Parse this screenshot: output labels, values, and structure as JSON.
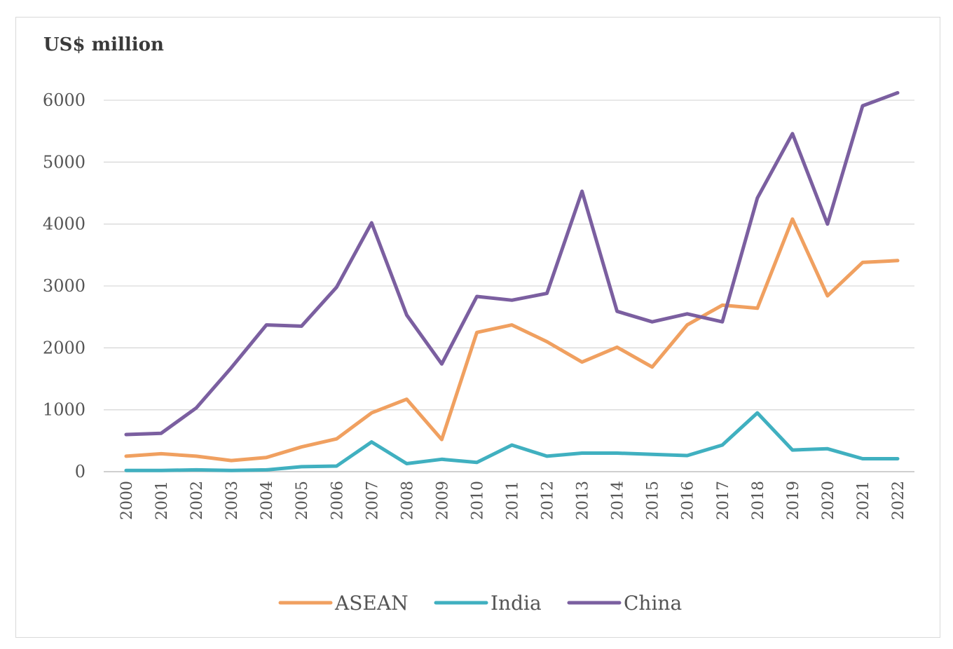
{
  "chart_data": {
    "type": "line",
    "ylabel": "US$ million",
    "ylim": [
      0,
      6000
    ],
    "yticks": [
      0,
      1000,
      2000,
      3000,
      4000,
      5000,
      6000
    ],
    "grid": true,
    "legend_position": "bottom",
    "categories": [
      "2000",
      "2001",
      "2002",
      "2003",
      "2004",
      "2005",
      "2006",
      "2007",
      "2008",
      "2009",
      "2010",
      "2011",
      "2012",
      "2013",
      "2014",
      "2015",
      "2016",
      "2017",
      "2018",
      "2019",
      "2020",
      "2021",
      "2022"
    ],
    "series": [
      {
        "name": "ASEAN",
        "color": "#f0a060",
        "values": [
          250,
          290,
          250,
          180,
          230,
          400,
          530,
          950,
          1170,
          520,
          2250,
          2370,
          2100,
          1770,
          2010,
          1690,
          2370,
          2690,
          2640,
          4080,
          2840,
          3380,
          3410
        ]
      },
      {
        "name": "India",
        "color": "#40b0c0",
        "values": [
          20,
          20,
          30,
          20,
          30,
          80,
          90,
          480,
          130,
          200,
          150,
          430,
          250,
          300,
          300,
          280,
          260,
          430,
          950,
          350,
          370,
          210,
          210
        ]
      },
      {
        "name": "China",
        "color": "#7b5fa0",
        "values": [
          600,
          620,
          1030,
          1680,
          2370,
          2350,
          2980,
          4020,
          2530,
          1740,
          2830,
          2770,
          2880,
          4530,
          2590,
          2420,
          2550,
          2420,
          4420,
          5460,
          4000,
          5910,
          6120
        ]
      }
    ]
  }
}
